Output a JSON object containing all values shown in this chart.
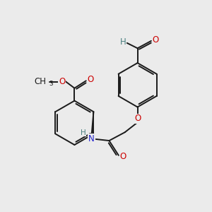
{
  "background_color": "#ebebeb",
  "bond_color": "#1a1a1a",
  "O_color": "#cc0000",
  "N_color": "#2222cc",
  "H_color": "#4a8080",
  "bond_width": 1.4,
  "font_size": 8.5,
  "figsize": [
    3.0,
    3.0
  ],
  "dpi": 100,
  "xlim": [
    0,
    10
  ],
  "ylim": [
    0,
    10
  ]
}
